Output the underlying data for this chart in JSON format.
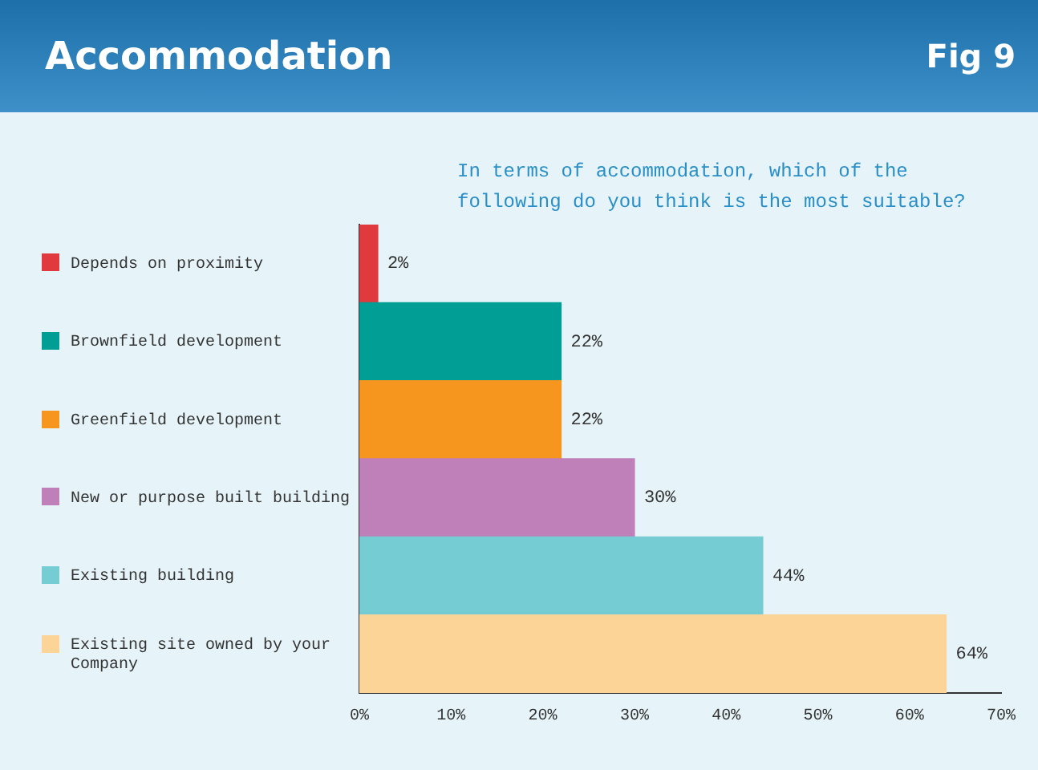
{
  "chart_data": {
    "type": "bar",
    "orientation": "horizontal",
    "title": "Accommodation",
    "subtitle": "In terms of accommodation, which of the following do you think is the most suitable?",
    "annotations": [
      "Fig 9"
    ],
    "categories": [
      "Depends on proximity",
      "Brownfield development",
      "Greenfield development",
      "New or purpose built building",
      "Existing building",
      "Existing site owned by your Company"
    ],
    "values": [
      2,
      22,
      22,
      30,
      44,
      64
    ],
    "colors": [
      "#e0393e",
      "#009e94",
      "#f7961e",
      "#bf7fb8",
      "#76ccd3",
      "#fdd497"
    ],
    "value_labels": [
      "2%",
      "22%",
      "22%",
      "30%",
      "44%",
      "64%"
    ],
    "xlim": [
      0,
      70
    ],
    "xticks": [
      {
        "value": 0,
        "label": "0%"
      },
      {
        "value": 10,
        "label": "10%"
      },
      {
        "value": 20,
        "label": "20%"
      },
      {
        "value": 30,
        "label": "30%"
      },
      {
        "value": 40,
        "label": "40%"
      },
      {
        "value": 50,
        "label": "50%"
      },
      {
        "value": 60,
        "label": "60%"
      },
      {
        "value": 70,
        "label": "70%"
      }
    ],
    "grid": false
  }
}
